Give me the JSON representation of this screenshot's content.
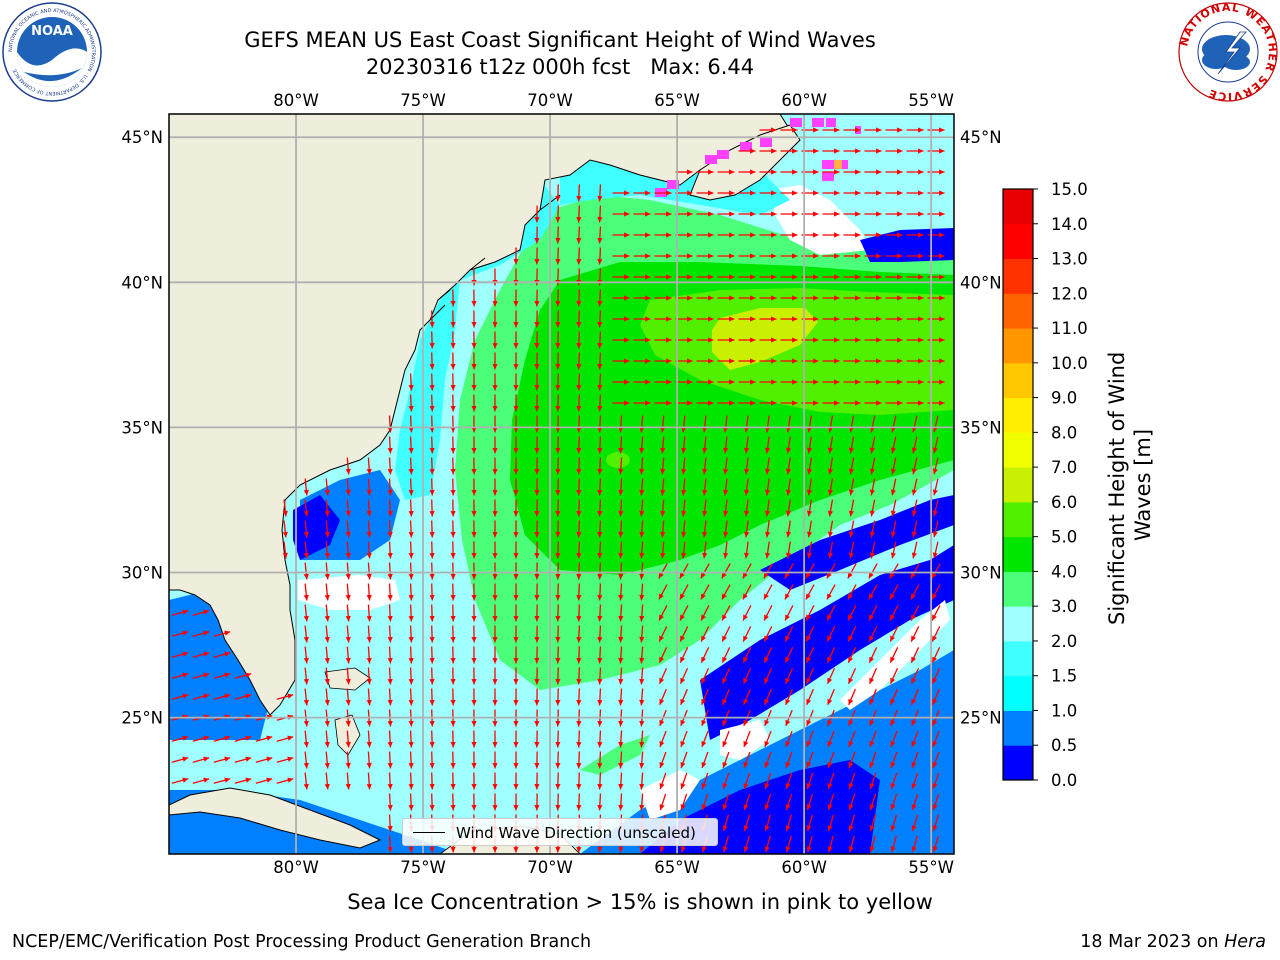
{
  "header": {
    "title_line1": "GEFS MEAN US East Coast Significant Height of Wind Waves",
    "title_line2": "20230316 t12z 000h fcst   Max: 6.44"
  },
  "logos": {
    "noaa_text": "NOAA",
    "noaa_ring_text": "NATIONAL OCEANIC AND ATMOSPHERIC ADMINISTRATION · U.S. DEPARTMENT OF COMMERCE",
    "nws_ring_text": "NATIONAL WEATHER SERVICE"
  },
  "map": {
    "lon_range": [
      -85,
      -54.1
    ],
    "lat_range": [
      20.3,
      45.8
    ],
    "lon_ticks": [
      "80°W",
      "75°W",
      "70°W",
      "65°W",
      "60°W",
      "55°W"
    ],
    "lat_ticks": [
      "45°N",
      "40°N",
      "35°N",
      "30°N",
      "25°N"
    ],
    "grid": true,
    "land_color": "#efeddb",
    "no_data_color": "#ffffff",
    "vector_color": "#ff0000"
  },
  "colorbar": {
    "label": "Significant Height of Wind Waves [m]",
    "ticks": [
      "0.0",
      "0.5",
      "1.0",
      "1.5",
      "2.0",
      "3.0",
      "4.0",
      "5.0",
      "6.0",
      "7.0",
      "8.0",
      "9.0",
      "10.0",
      "11.0",
      "12.0",
      "13.0",
      "14.0",
      "15.0"
    ],
    "colors": [
      "#0000ff",
      "#0080ff",
      "#00ffff",
      "#40ffff",
      "#a0ffff",
      "#4cff7a",
      "#00e600",
      "#50f000",
      "#c8f000",
      "#f0ff00",
      "#ffee00",
      "#ffc800",
      "#ff9600",
      "#ff6400",
      "#ff3200",
      "#ff0000",
      "#e60000"
    ]
  },
  "legend": {
    "label": "Wind Wave Direction (unscaled)"
  },
  "subtitle": "Sea Ice Concentration > 15% is shown in pink to yellow",
  "footer": {
    "left": "NCEP/EMC/Verification Post Processing Product Generation Branch",
    "right_date": "18 Mar 2023 on",
    "right_host": "Hera"
  }
}
